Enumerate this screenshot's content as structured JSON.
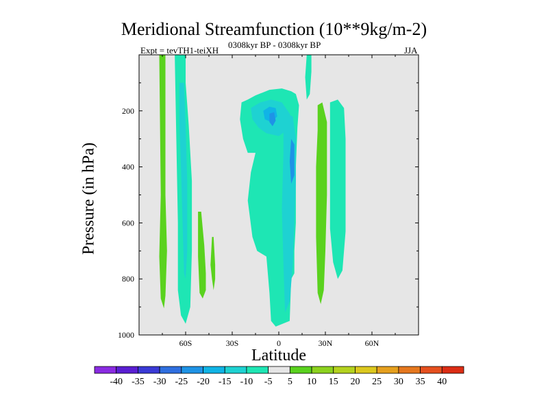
{
  "chart_data": {
    "type": "heatmap",
    "title": "Meridional Streamfunction (10**9kg/m-2)",
    "subtitle_left": "Expt = tevTH1-teiXH",
    "subtitle_center": "0308kyr BP - 0308kyr BP",
    "subtitle_right": "JJA",
    "xlabel": "Latitude",
    "ylabel": "Pressure (in hPa)",
    "xlim": [
      -90,
      90
    ],
    "ylim": [
      1000,
      0
    ],
    "x_ticks": [
      -60,
      -30,
      0,
      30,
      60
    ],
    "x_tick_labels": [
      "60S",
      "30S",
      "0",
      "30N",
      "60N"
    ],
    "y_ticks": [
      200,
      400,
      600,
      800,
      1000
    ],
    "y_tick_labels": [
      "200",
      "400",
      "600",
      "800",
      "1000"
    ],
    "background_color": "#e6e6e6",
    "levels": [
      -40,
      -35,
      -30,
      -25,
      -20,
      -15,
      -10,
      -5,
      5,
      10,
      15,
      20,
      25,
      30,
      35,
      40
    ],
    "colorbar_colors": [
      "#8a2be2",
      "#5a1ed2",
      "#3a3ad6",
      "#2f6fe0",
      "#1e93e6",
      "#10b4e6",
      "#1ed2d2",
      "#1ee6b4",
      "#e6e6e6",
      "#5ad21e",
      "#8cd21e",
      "#b4d21e",
      "#dcc81e",
      "#e6a01e",
      "#e6781e",
      "#e6501e",
      "#dc2d14"
    ],
    "regions": [
      {
        "label": "positive band 75S",
        "value": 7,
        "polygon": [
          [
            -77,
            0
          ],
          [
            -73,
            0
          ],
          [
            -73,
            500
          ],
          [
            -72,
            700
          ],
          [
            -73,
            860
          ],
          [
            -74,
            905
          ],
          [
            -76,
            870
          ],
          [
            -77,
            720
          ],
          [
            -76,
            500
          ]
        ]
      },
      {
        "label": "negative cell 62S",
        "value": -7,
        "polygon": [
          [
            -67,
            0
          ],
          [
            -60,
            0
          ],
          [
            -60,
            100
          ],
          [
            -58,
            250
          ],
          [
            -56,
            450
          ],
          [
            -56,
            700
          ],
          [
            -57,
            900
          ],
          [
            -60,
            960
          ],
          [
            -63,
            930
          ],
          [
            -65,
            840
          ],
          [
            -65,
            600
          ],
          [
            -66,
            300
          ]
        ]
      },
      {
        "label": "negative core 62S",
        "value": -12,
        "polygon": [
          [
            -64,
            100
          ],
          [
            -61,
            100
          ],
          [
            -60,
            250
          ],
          [
            -59,
            450
          ],
          [
            -59,
            700
          ],
          [
            -60,
            800
          ],
          [
            -61,
            780
          ],
          [
            -62,
            600
          ],
          [
            -63,
            400
          ],
          [
            -64,
            250
          ]
        ]
      },
      {
        "label": "positive 48S",
        "value": 7,
        "polygon": [
          [
            -52,
            560
          ],
          [
            -50,
            560
          ],
          [
            -48,
            680
          ],
          [
            -47,
            780
          ],
          [
            -47,
            840
          ],
          [
            -49,
            870
          ],
          [
            -51,
            850
          ],
          [
            -52,
            720
          ]
        ]
      },
      {
        "label": "positive 42S",
        "value": 7,
        "polygon": [
          [
            -43,
            650
          ],
          [
            -42,
            650
          ],
          [
            -41,
            750
          ],
          [
            -41,
            800
          ],
          [
            -42,
            840
          ],
          [
            -43,
            800
          ],
          [
            -44,
            750
          ]
        ]
      },
      {
        "label": "negative cell 15S-10N",
        "value": -7,
        "polygon": [
          [
            -24,
            170
          ],
          [
            -20,
            160
          ],
          [
            -15,
            145
          ],
          [
            -6,
            125
          ],
          [
            2,
            120
          ],
          [
            8,
            130
          ],
          [
            11,
            140
          ],
          [
            13,
            180
          ],
          [
            12,
            260
          ],
          [
            11,
            400
          ],
          [
            11,
            600
          ],
          [
            10,
            700
          ],
          [
            10,
            780
          ],
          [
            8,
            800
          ],
          [
            7,
            950
          ],
          [
            -2,
            970
          ],
          [
            -5,
            950
          ],
          [
            -6,
            850
          ],
          [
            -8,
            720
          ],
          [
            -14,
            700
          ],
          [
            -17,
            650
          ],
          [
            -20,
            520
          ],
          [
            -18,
            420
          ],
          [
            -15,
            350
          ],
          [
            -20,
            350
          ],
          [
            -23,
            300
          ],
          [
            -25,
            230
          ]
        ]
      },
      {
        "label": "negative core upper",
        "value": -12,
        "polygon": [
          [
            -18,
            190
          ],
          [
            -12,
            170
          ],
          [
            -5,
            160
          ],
          [
            2,
            170
          ],
          [
            7,
            210
          ],
          [
            9,
            250
          ],
          [
            5,
            270
          ],
          [
            0,
            290
          ],
          [
            -8,
            280
          ],
          [
            -13,
            260
          ],
          [
            -17,
            230
          ]
        ]
      },
      {
        "label": "negative core vertical",
        "value": -12,
        "polygon": [
          [
            4,
            210
          ],
          [
            9,
            220
          ],
          [
            11,
            300
          ],
          [
            11,
            450
          ],
          [
            10,
            600
          ],
          [
            9,
            750
          ],
          [
            7,
            880
          ],
          [
            4,
            920
          ],
          [
            3,
            750
          ],
          [
            2,
            550
          ],
          [
            3,
            350
          ],
          [
            3,
            260
          ]
        ]
      },
      {
        "label": "negative core level 20",
        "value": -17,
        "polygon": [
          [
            -10,
            200
          ],
          [
            -6,
            185
          ],
          [
            -2,
            190
          ],
          [
            -1,
            220
          ],
          [
            -5,
            240
          ],
          [
            -9,
            230
          ]
        ]
      },
      {
        "label": "negative core level 25",
        "value": -22,
        "polygon": [
          [
            -6,
            210
          ],
          [
            -3,
            205
          ],
          [
            -2,
            235
          ],
          [
            -4,
            255
          ],
          [
            -6,
            240
          ]
        ]
      },
      {
        "label": "negative core deep",
        "value": -22,
        "polygon": [
          [
            8,
            300
          ],
          [
            10,
            320
          ],
          [
            10,
            430
          ],
          [
            8,
            460
          ],
          [
            7,
            380
          ]
        ]
      },
      {
        "label": "negative upper 20N",
        "value": -7,
        "polygon": [
          [
            18,
            0
          ],
          [
            21,
            0
          ],
          [
            21,
            60
          ],
          [
            20,
            140
          ],
          [
            18,
            160
          ],
          [
            17,
            80
          ]
        ]
      },
      {
        "label": "positive band 26N",
        "value": 7,
        "polygon": [
          [
            25,
            180
          ],
          [
            28,
            170
          ],
          [
            31,
            240
          ],
          [
            31,
            500
          ],
          [
            30,
            700
          ],
          [
            29,
            840
          ],
          [
            27,
            890
          ],
          [
            25,
            850
          ],
          [
            24,
            650
          ],
          [
            24,
            400
          ],
          [
            25,
            270
          ]
        ]
      },
      {
        "label": "negative band 35N",
        "value": -7,
        "polygon": [
          [
            33,
            170
          ],
          [
            38,
            160
          ],
          [
            42,
            190
          ],
          [
            43,
            300
          ],
          [
            43,
            450
          ],
          [
            43,
            630
          ],
          [
            41,
            770
          ],
          [
            38,
            800
          ],
          [
            35,
            740
          ],
          [
            33,
            620
          ],
          [
            33,
            400
          ],
          [
            33,
            260
          ]
        ]
      }
    ]
  }
}
